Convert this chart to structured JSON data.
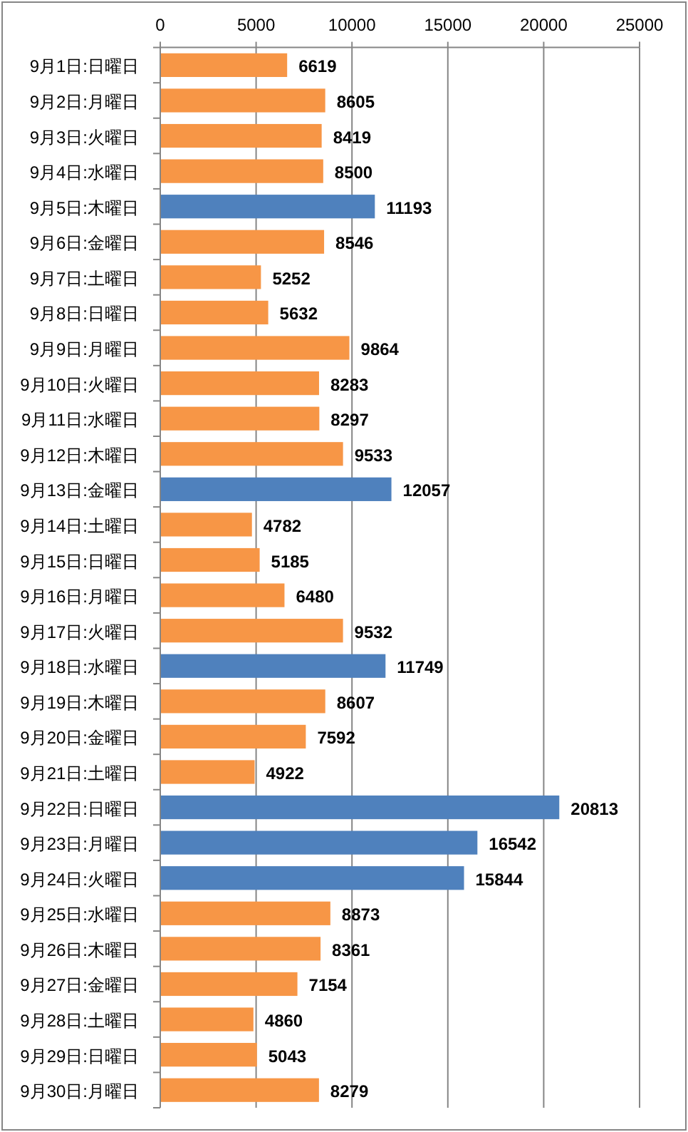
{
  "chart_data": {
    "type": "bar",
    "orientation": "horizontal",
    "categories": [
      "9月1日:日曜日",
      "9月2日:月曜日",
      "9月3日:火曜日",
      "9月4日:水曜日",
      "9月5日:木曜日",
      "9月6日:金曜日",
      "9月7日:土曜日",
      "9月8日:日曜日",
      "9月9日:月曜日",
      "9月10日:火曜日",
      "9月11日:水曜日",
      "9月12日:木曜日",
      "9月13日:金曜日",
      "9月14日:土曜日",
      "9月15日:日曜日",
      "9月16日:月曜日",
      "9月17日:火曜日",
      "9月18日:水曜日",
      "9月19日:木曜日",
      "9月20日:金曜日",
      "9月21日:土曜日",
      "9月22日:日曜日",
      "9月23日:月曜日",
      "9月24日:火曜日",
      "9月25日:水曜日",
      "9月26日:木曜日",
      "9月27日:金曜日",
      "9月28日:土曜日",
      "9月29日:日曜日",
      "9月30日:月曜日"
    ],
    "values": [
      6619,
      8605,
      8419,
      8500,
      11193,
      8546,
      5252,
      5632,
      9864,
      8283,
      8297,
      9533,
      12057,
      4782,
      5185,
      6480,
      9532,
      11749,
      8607,
      7592,
      4922,
      20813,
      16542,
      15844,
      8873,
      8361,
      7154,
      4860,
      5043,
      8279
    ],
    "colors": [
      "#f79646",
      "#f79646",
      "#f79646",
      "#f79646",
      "#4f81bd",
      "#f79646",
      "#f79646",
      "#f79646",
      "#f79646",
      "#f79646",
      "#f79646",
      "#f79646",
      "#4f81bd",
      "#f79646",
      "#f79646",
      "#f79646",
      "#f79646",
      "#4f81bd",
      "#f79646",
      "#f79646",
      "#f79646",
      "#4f81bd",
      "#4f81bd",
      "#4f81bd",
      "#f79646",
      "#f79646",
      "#f79646",
      "#f79646",
      "#f79646",
      "#f79646"
    ],
    "xlim": [
      0,
      25000
    ],
    "xticks": [
      0,
      5000,
      10000,
      15000,
      20000,
      25000
    ],
    "grid": "x",
    "data_labels": true
  }
}
